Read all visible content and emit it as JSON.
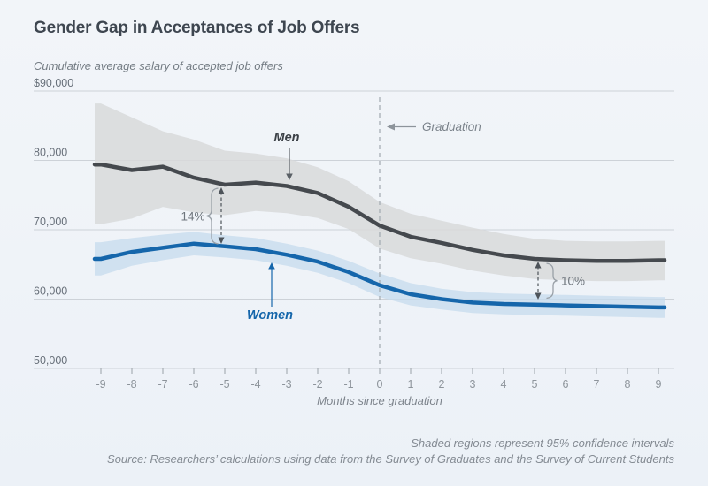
{
  "header": {
    "title": "Gender Gap in Acceptances of Job Offers",
    "subtitle": "Cumulative average salary of accepted job offers"
  },
  "footer": {
    "note": "Shaded regions represent 95% confidence intervals",
    "source": "Source: Researchers’ calculations using data from the Survey of Graduates and the Survey of Current Students"
  },
  "colors": {
    "background": "#f1f4f8",
    "gridline": "#cdd2d8",
    "men_line": "#45494e",
    "men_band": "#d8d9db",
    "women_line": "#1566ab",
    "women_band": "#c5dbee",
    "annotation_gray": "#6e757c",
    "axis_text": "#8d949b"
  },
  "chart_data": {
    "type": "line",
    "x": [
      -9,
      -8,
      -7,
      -6,
      -5,
      -4,
      -3,
      -2,
      -1,
      0,
      1,
      2,
      3,
      4,
      5,
      6,
      7,
      8,
      9
    ],
    "xlabel": "Months since graduation",
    "ylabel": "Cumulative average salary of accepted job offers",
    "ylim": [
      50000,
      90000
    ],
    "grid": "horizontal",
    "y_ticks": [
      {
        "value": 90000,
        "label": "$90,000"
      },
      {
        "value": 80000,
        "label": "80,000"
      },
      {
        "value": 70000,
        "label": "70,000"
      },
      {
        "value": 60000,
        "label": "60,000"
      },
      {
        "value": 50000,
        "label": "50,000"
      }
    ],
    "series": [
      {
        "name": "Men",
        "color": "#45494e",
        "band_color": "#d8d9db",
        "band_opacity": 0.85,
        "values": [
          79400,
          78600,
          79100,
          77500,
          76500,
          76800,
          76300,
          75300,
          73300,
          70600,
          69000,
          68100,
          67100,
          66300,
          65800,
          65600,
          65500,
          65500,
          65600
        ],
        "upper": [
          88200,
          86200,
          84200,
          83000,
          81400,
          81000,
          80300,
          79000,
          77000,
          74000,
          72300,
          71300,
          70300,
          69400,
          68700,
          68400,
          68300,
          68300,
          68400
        ],
        "lower": [
          70800,
          71600,
          73300,
          72500,
          72100,
          72700,
          72400,
          71700,
          70100,
          67300,
          65900,
          65100,
          64100,
          63400,
          62900,
          62700,
          62600,
          62600,
          62700
        ]
      },
      {
        "name": "Women",
        "color": "#1566ab",
        "band_color": "#c5dbee",
        "band_opacity": 0.75,
        "values": [
          65800,
          66800,
          67400,
          68000,
          67600,
          67200,
          66400,
          65400,
          63900,
          62000,
          60700,
          60000,
          59500,
          59300,
          59200,
          59100,
          59000,
          58900,
          58800
        ],
        "upper": [
          68200,
          68800,
          69300,
          69700,
          69200,
          68800,
          68000,
          67000,
          65500,
          63700,
          62300,
          61500,
          61000,
          60800,
          60700,
          60600,
          60500,
          60400,
          60300
        ],
        "lower": [
          63400,
          64800,
          65600,
          66300,
          66000,
          65600,
          64800,
          63800,
          62300,
          60300,
          59100,
          58500,
          58000,
          57800,
          57700,
          57600,
          57500,
          57400,
          57300
        ]
      }
    ],
    "annotations": {
      "graduation_label": "Graduation",
      "graduation_x": 0,
      "gap_left_label": "14%",
      "gap_left_x": -5,
      "gap_right_label": "10%",
      "gap_right_x": 5
    }
  }
}
